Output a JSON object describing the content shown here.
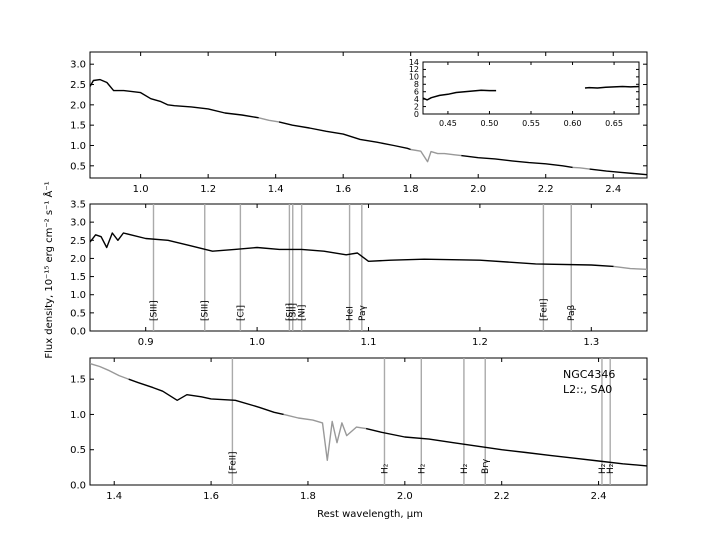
{
  "ylabel": "Flux density, 10⁻¹⁵ erg cm⁻² s⁻¹ Å⁻¹",
  "xlabel": "Rest wavelength, μm",
  "annotation": [
    "NGC4346",
    "L2::,  SA0"
  ],
  "colors": {
    "primary": "#000000",
    "secondary": "#999999",
    "axes": "#000000"
  },
  "chart_data": [
    {
      "type": "line",
      "panel": "top",
      "xlim": [
        0.85,
        2.5
      ],
      "ylim": [
        0.2,
        3.3
      ],
      "xticks": [
        1.0,
        1.2,
        1.4,
        1.6,
        1.8,
        2.0,
        2.2,
        2.4
      ],
      "yticks": [
        0.5,
        1.0,
        1.5,
        2.0,
        2.5,
        3.0
      ],
      "x_tick_labels": [
        "1.0",
        "1.2",
        "1.4",
        "1.6",
        "1.8",
        "2.0",
        "2.2",
        "2.4"
      ],
      "y_tick_labels": [
        "0.5",
        "1.0",
        "1.5",
        "2.0",
        "2.5",
        "3.0"
      ],
      "series": [
        {
          "color": "black",
          "points": [
            [
              0.85,
              2.45
            ],
            [
              0.86,
              2.6
            ],
            [
              0.88,
              2.62
            ],
            [
              0.9,
              2.55
            ],
            [
              0.92,
              2.35
            ],
            [
              0.95,
              2.35
            ],
            [
              1.0,
              2.3
            ],
            [
              1.03,
              2.15
            ],
            [
              1.06,
              2.08
            ],
            [
              1.08,
              2.0
            ],
            [
              1.1,
              1.98
            ],
            [
              1.15,
              1.95
            ],
            [
              1.2,
              1.9
            ],
            [
              1.25,
              1.8
            ],
            [
              1.3,
              1.75
            ],
            [
              1.35,
              1.68
            ]
          ]
        },
        {
          "color": "gray",
          "points": [
            [
              1.35,
              1.68
            ],
            [
              1.38,
              1.62
            ],
            [
              1.41,
              1.58
            ]
          ]
        },
        {
          "color": "black",
          "points": [
            [
              1.41,
              1.58
            ],
            [
              1.45,
              1.5
            ],
            [
              1.5,
              1.43
            ],
            [
              1.55,
              1.35
            ],
            [
              1.6,
              1.28
            ],
            [
              1.65,
              1.15
            ],
            [
              1.7,
              1.08
            ],
            [
              1.75,
              1.0
            ],
            [
              1.79,
              0.93
            ],
            [
              1.8,
              0.9
            ]
          ]
        },
        {
          "color": "gray",
          "points": [
            [
              1.8,
              0.9
            ],
            [
              1.83,
              0.86
            ],
            [
              1.85,
              0.6
            ],
            [
              1.86,
              0.85
            ],
            [
              1.88,
              0.8
            ],
            [
              1.9,
              0.8
            ],
            [
              1.93,
              0.77
            ],
            [
              1.95,
              0.75
            ]
          ]
        },
        {
          "color": "black",
          "points": [
            [
              1.95,
              0.75
            ],
            [
              2.0,
              0.7
            ],
            [
              2.05,
              0.67
            ],
            [
              2.1,
              0.62
            ],
            [
              2.15,
              0.58
            ],
            [
              2.2,
              0.55
            ],
            [
              2.25,
              0.5
            ],
            [
              2.28,
              0.46
            ]
          ]
        },
        {
          "color": "gray",
          "points": [
            [
              2.28,
              0.46
            ],
            [
              2.3,
              0.45
            ],
            [
              2.33,
              0.42
            ]
          ]
        },
        {
          "color": "black",
          "points": [
            [
              2.33,
              0.42
            ],
            [
              2.38,
              0.37
            ],
            [
              2.42,
              0.34
            ],
            [
              2.46,
              0.31
            ],
            [
              2.5,
              0.28
            ]
          ]
        }
      ]
    },
    {
      "type": "line",
      "panel": "inset",
      "xlim": [
        0.42,
        0.68
      ],
      "ylim": [
        0,
        14
      ],
      "xticks": [
        0.45,
        0.5,
        0.55,
        0.6,
        0.65
      ],
      "yticks": [
        0,
        2,
        4,
        6,
        8,
        10,
        12,
        14
      ],
      "x_tick_labels": [
        "0.45",
        "0.50",
        "0.55",
        "0.60",
        "0.65"
      ],
      "y_tick_labels": [
        "0",
        "2",
        "4",
        "6",
        "8",
        "10",
        "12",
        "14"
      ],
      "series": [
        {
          "color": "black",
          "points": [
            [
              0.42,
              4.3
            ],
            [
              0.425,
              3.8
            ],
            [
              0.43,
              4.4
            ],
            [
              0.44,
              5.0
            ],
            [
              0.45,
              5.3
            ],
            [
              0.46,
              5.8
            ],
            [
              0.47,
              6.0
            ],
            [
              0.48,
              6.2
            ],
            [
              0.49,
              6.4
            ],
            [
              0.5,
              6.3
            ],
            [
              0.508,
              6.3
            ]
          ]
        },
        {
          "color": "black",
          "points": [
            [
              0.615,
              7.0
            ],
            [
              0.62,
              7.1
            ],
            [
              0.63,
              7.0
            ],
            [
              0.64,
              7.2
            ],
            [
              0.65,
              7.3
            ],
            [
              0.66,
              7.4
            ],
            [
              0.67,
              7.3
            ],
            [
              0.68,
              7.4
            ]
          ]
        }
      ]
    },
    {
      "type": "line",
      "panel": "middle",
      "xlim": [
        0.85,
        1.35
      ],
      "ylim": [
        0,
        3.5
      ],
      "xticks": [
        0.9,
        1.0,
        1.1,
        1.2,
        1.3
      ],
      "yticks": [
        0.0,
        0.5,
        1.0,
        1.5,
        2.0,
        2.5,
        3.0,
        3.5
      ],
      "x_tick_labels": [
        "0.9",
        "1.0",
        "1.1",
        "1.2",
        "1.3"
      ],
      "y_tick_labels": [
        "0.0",
        "0.5",
        "1.0",
        "1.5",
        "2.0",
        "2.5",
        "3.0",
        "3.5"
      ],
      "series": [
        {
          "color": "black",
          "points": [
            [
              0.85,
              2.45
            ],
            [
              0.855,
              2.65
            ],
            [
              0.86,
              2.6
            ],
            [
              0.865,
              2.3
            ],
            [
              0.87,
              2.7
            ],
            [
              0.875,
              2.5
            ],
            [
              0.88,
              2.7
            ],
            [
              0.9,
              2.55
            ],
            [
              0.92,
              2.5
            ],
            [
              0.94,
              2.35
            ],
            [
              0.96,
              2.2
            ],
            [
              0.98,
              2.25
            ],
            [
              1.0,
              2.3
            ],
            [
              1.02,
              2.25
            ],
            [
              1.04,
              2.25
            ],
            [
              1.06,
              2.2
            ],
            [
              1.08,
              2.1
            ],
            [
              1.09,
              2.15
            ],
            [
              1.1,
              1.92
            ],
            [
              1.12,
              1.95
            ],
            [
              1.15,
              1.98
            ],
            [
              1.2,
              1.95
            ],
            [
              1.25,
              1.85
            ],
            [
              1.3,
              1.82
            ],
            [
              1.32,
              1.78
            ]
          ]
        },
        {
          "color": "gray",
          "points": [
            [
              1.32,
              1.78
            ],
            [
              1.335,
              1.72
            ],
            [
              1.35,
              1.7
            ]
          ]
        }
      ],
      "lines": [
        {
          "label": "[SIII]",
          "x": 0.907
        },
        {
          "label": "[SIII]",
          "x": 0.953
        },
        {
          "label": "[CI]",
          "x": 0.985
        },
        {
          "label": "[SII]",
          "x": 1.029
        },
        {
          "label": "[SII]",
          "x": 1.032
        },
        {
          "label": "[NI]",
          "x": 1.04
        },
        {
          "label": "HeI",
          "x": 1.083
        },
        {
          "label": "Paγ",
          "x": 1.094
        },
        {
          "label": "[FeII]",
          "x": 1.257
        },
        {
          "label": "Paβ",
          "x": 1.282
        }
      ]
    },
    {
      "type": "line",
      "panel": "bottom",
      "xlim": [
        1.35,
        2.5
      ],
      "ylim": [
        0,
        1.8
      ],
      "xticks": [
        1.4,
        1.6,
        1.8,
        2.0,
        2.2,
        2.4
      ],
      "yticks": [
        0.0,
        0.5,
        1.0,
        1.5
      ],
      "x_tick_labels": [
        "1.4",
        "1.6",
        "1.8",
        "2.0",
        "2.2",
        "2.4"
      ],
      "y_tick_labels": [
        "0.0",
        "0.5",
        "1.0",
        "1.5"
      ],
      "series": [
        {
          "color": "gray",
          "points": [
            [
              1.35,
              1.72
            ],
            [
              1.37,
              1.68
            ],
            [
              1.39,
              1.62
            ],
            [
              1.41,
              1.55
            ],
            [
              1.43,
              1.5
            ]
          ]
        },
        {
          "color": "black",
          "points": [
            [
              1.43,
              1.5
            ],
            [
              1.45,
              1.45
            ],
            [
              1.48,
              1.38
            ],
            [
              1.5,
              1.33
            ],
            [
              1.53,
              1.2
            ],
            [
              1.55,
              1.28
            ],
            [
              1.58,
              1.25
            ],
            [
              1.6,
              1.22
            ],
            [
              1.65,
              1.2
            ],
            [
              1.7,
              1.1
            ],
            [
              1.73,
              1.03
            ],
            [
              1.75,
              1.0
            ]
          ]
        },
        {
          "color": "gray",
          "points": [
            [
              1.75,
              1.0
            ],
            [
              1.78,
              0.95
            ],
            [
              1.81,
              0.92
            ],
            [
              1.83,
              0.88
            ],
            [
              1.84,
              0.35
            ],
            [
              1.85,
              0.9
            ],
            [
              1.86,
              0.6
            ],
            [
              1.87,
              0.88
            ],
            [
              1.88,
              0.7
            ],
            [
              1.9,
              0.82
            ],
            [
              1.92,
              0.8
            ]
          ]
        },
        {
          "color": "black",
          "points": [
            [
              1.92,
              0.8
            ],
            [
              1.95,
              0.75
            ],
            [
              2.0,
              0.68
            ],
            [
              2.05,
              0.65
            ],
            [
              2.1,
              0.6
            ],
            [
              2.15,
              0.55
            ],
            [
              2.2,
              0.5
            ],
            [
              2.25,
              0.46
            ],
            [
              2.3,
              0.42
            ],
            [
              2.35,
              0.38
            ],
            [
              2.4,
              0.34
            ],
            [
              2.45,
              0.3
            ],
            [
              2.5,
              0.27
            ]
          ]
        }
      ],
      "lines": [
        {
          "label": "[FeII]",
          "x": 1.644
        },
        {
          "label": "H₂",
          "x": 1.958
        },
        {
          "label": "H₂",
          "x": 2.034
        },
        {
          "label": "H₂",
          "x": 2.122
        },
        {
          "label": "Brγ",
          "x": 2.166
        },
        {
          "label": "H₂",
          "x": 2.407
        },
        {
          "label": "H₂",
          "x": 2.424
        }
      ]
    }
  ]
}
